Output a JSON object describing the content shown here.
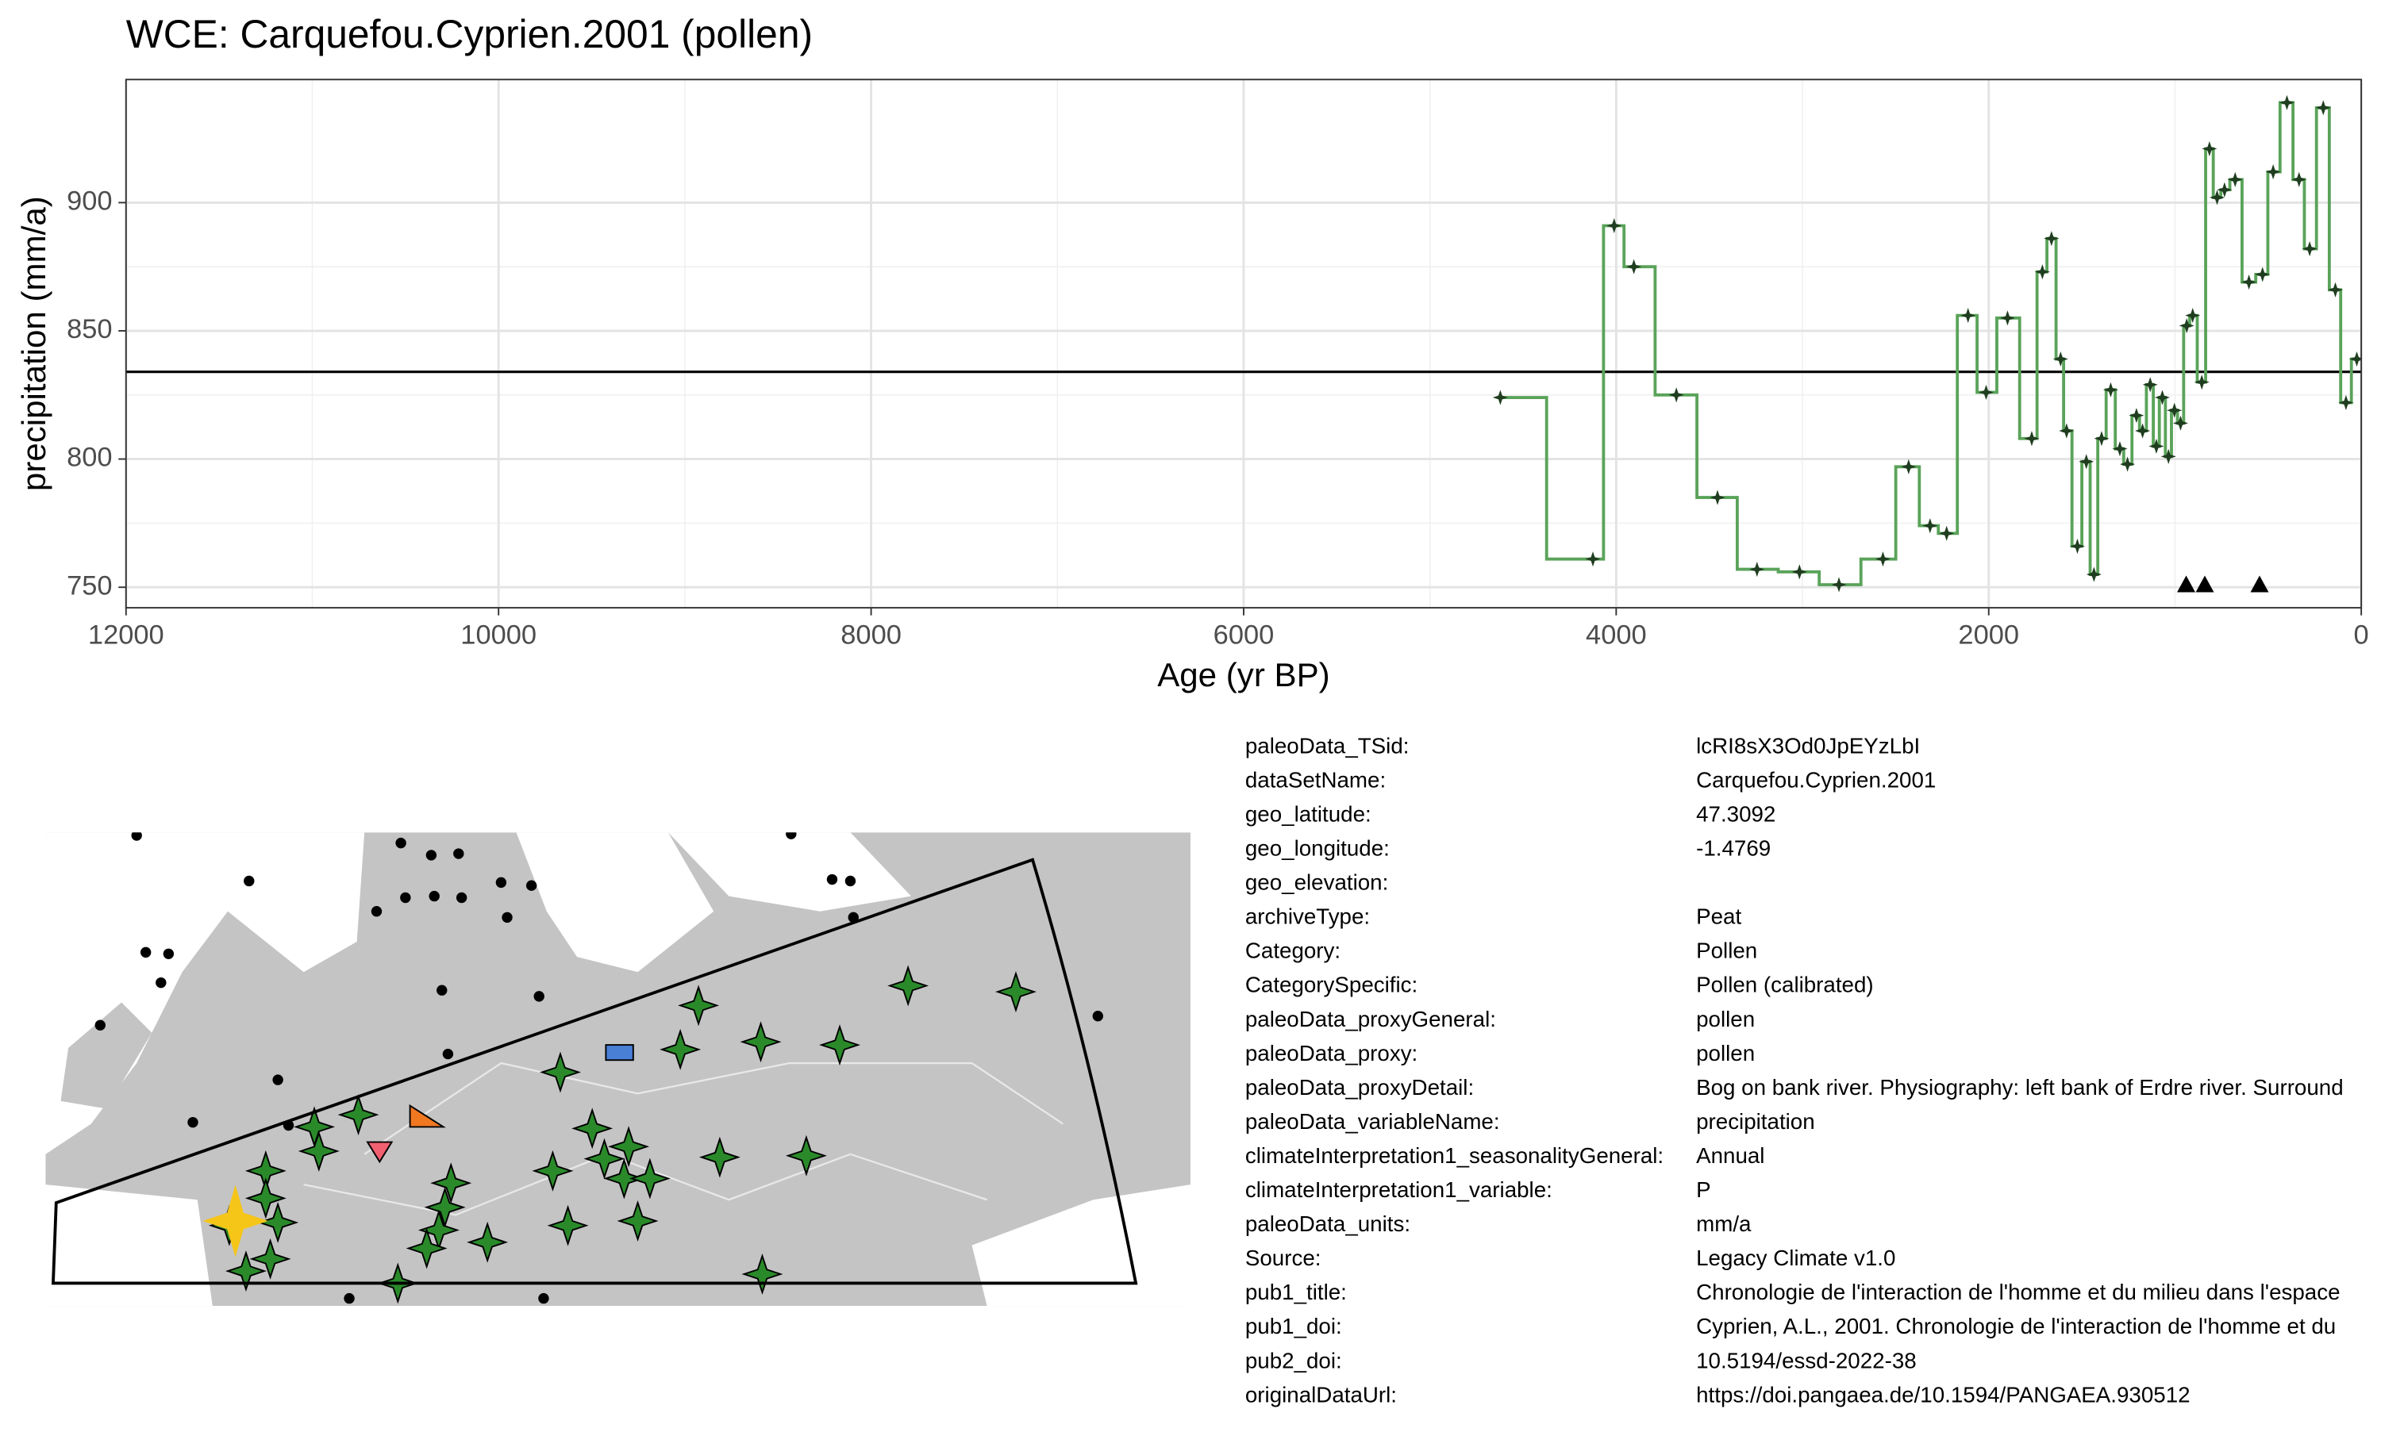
{
  "chart_data": {
    "type": "step",
    "title": "WCE: Carquefou.Cyprien.2001 (pollen)",
    "x_label": "Age (yr BP)",
    "y_label": "precipitation (mm/a)",
    "color": "#5aa35a",
    "point_color": "#1f3d1f",
    "x": [
      4622,
      4125,
      4011,
      3905,
      3677,
      3456,
      3244,
      3016,
      2804,
      2568,
      2430,
      2315,
      2226,
      2111,
      2014,
      1899,
      1769,
      1712,
      1663,
      1614,
      1582,
      1524,
      1476,
      1435,
      1394,
      1345,
      1296,
      1255,
      1207,
      1174,
      1133,
      1100,
      1068,
      1035,
      1003,
      970,
      937,
      905,
      856,
      815,
      774,
      734,
      677,
      603,
      530,
      473,
      399,
      334,
      277,
      204,
      139,
      82,
      24
    ],
    "values": [
      824,
      761,
      891,
      875,
      825,
      785,
      757,
      756,
      751,
      761,
      797,
      774,
      771,
      856,
      826,
      855,
      808,
      873,
      886,
      839,
      811,
      766,
      799,
      755,
      808,
      827,
      804,
      798,
      817,
      811,
      829,
      805,
      824,
      801,
      819,
      814,
      852,
      856,
      830,
      921,
      902,
      905,
      909,
      869,
      872,
      912,
      939,
      909,
      882,
      937,
      866,
      822,
      839
    ],
    "reference_line": 834,
    "markers_x": [
      940,
      840,
      546
    ],
    "markers_y": 751,
    "xlim": [
      12000,
      0
    ],
    "xticks": [
      12000,
      10000,
      8000,
      6000,
      4000,
      2000,
      0
    ],
    "ylim": [
      742,
      948
    ],
    "yticks": [
      750,
      800,
      850,
      900
    ],
    "grid": true
  },
  "metadata": {
    "rows": [
      [
        "paleoData_TSid:",
        "lcRI8sX3Od0JpEYzLbI"
      ],
      [
        "dataSetName:",
        "Carquefou.Cyprien.2001"
      ],
      [
        "geo_latitude:",
        "47.3092"
      ],
      [
        "geo_longitude:",
        "-1.4769"
      ],
      [
        "geo_elevation:",
        ""
      ],
      [
        "archiveType:",
        "Peat"
      ],
      [
        "Category:",
        "Pollen"
      ],
      [
        "CategorySpecific:",
        "Pollen (calibrated)"
      ],
      [
        "paleoData_proxyGeneral:",
        "pollen"
      ],
      [
        "paleoData_proxy:",
        "pollen"
      ],
      [
        "paleoData_proxyDetail:",
        "Bog on bank river. Physiography: left bank of Erdre river. Surround"
      ],
      [
        "paleoData_variableName:",
        "precipitation"
      ],
      [
        "climateInterpretation1_seasonalityGeneral:",
        "Annual"
      ],
      [
        "climateInterpretation1_variable:",
        "P"
      ],
      [
        "paleoData_units:",
        "mm/a"
      ],
      [
        "Source:",
        "Legacy Climate v1.0"
      ],
      [
        "pub1_title:",
        "Chronologie de l'interaction de l'homme et du milieu dans l'espace"
      ],
      [
        "pub1_doi:",
        "Cyprien, A.L., 2001. Chronologie de l'interaction de l'homme et du"
      ],
      [
        "pub2_doi:",
        "10.5194/essd-2022-38"
      ],
      [
        "originalDataUrl:",
        "https://doi.pangaea.de/10.1594/PANGAEA.930512"
      ]
    ]
  }
}
